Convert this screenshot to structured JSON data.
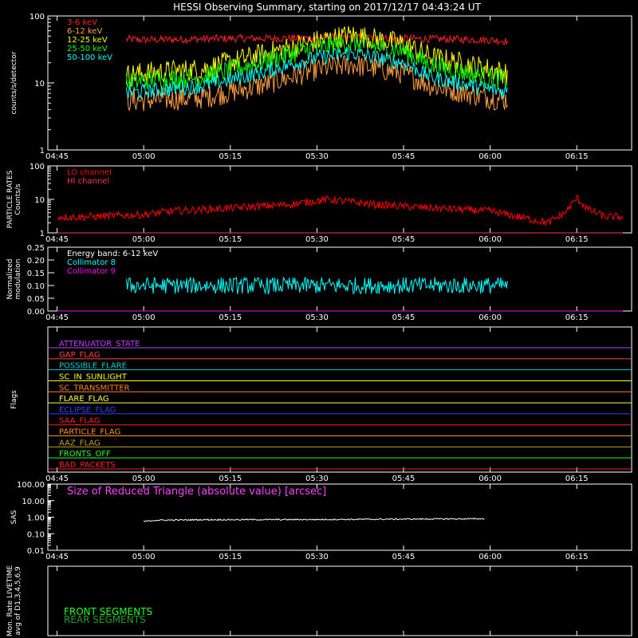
{
  "title": "HESSI Observing Summary, starting on 2017/12/17 04:43:24 UT",
  "time_ticks": [
    "04:45",
    "05:00",
    "05:15",
    "05:30",
    "05:45",
    "06:00",
    "06:15"
  ],
  "chart_data": [
    {
      "type": "line",
      "ylabel": "counts/s/detector",
      "yscale": "log",
      "ylim": [
        1,
        100
      ],
      "yticks": [
        "1",
        "10",
        "100"
      ],
      "series": [
        {
          "name": "3-6 keV",
          "color": "#ff2020",
          "window": [
            "04:57",
            "06:03"
          ],
          "t": [
            "04:57",
            "05:00",
            "05:15",
            "05:30",
            "05:36",
            "05:45",
            "06:00",
            "06:03"
          ],
          "values": [
            45,
            44,
            46,
            47,
            48,
            46,
            44,
            42
          ],
          "noise": 0.06
        },
        {
          "name": "6-12 keV",
          "color": "#ffa040",
          "window": [
            "04:57",
            "06:03"
          ],
          "t": [
            "04:57",
            "05:00",
            "05:10",
            "05:20",
            "05:30",
            "05:36",
            "05:45",
            "05:50",
            "06:00",
            "06:03"
          ],
          "values": [
            5.5,
            5.5,
            6,
            9,
            16,
            19,
            14,
            9,
            6,
            5.5
          ],
          "noise": 0.18
        },
        {
          "name": "12-25 keV",
          "color": "#ffff00",
          "window": [
            "04:57",
            "06:03"
          ],
          "t": [
            "04:57",
            "05:00",
            "05:10",
            "05:20",
            "05:30",
            "05:36",
            "05:45",
            "05:50",
            "06:00",
            "06:03"
          ],
          "values": [
            13,
            14,
            16,
            26,
            42,
            52,
            38,
            24,
            16,
            14
          ],
          "noise": 0.18
        },
        {
          "name": "25-50 keV",
          "color": "#00ff00",
          "window": [
            "04:57",
            "06:03"
          ],
          "t": [
            "04:57",
            "05:00",
            "05:10",
            "05:20",
            "05:30",
            "05:36",
            "05:45",
            "05:50",
            "06:00",
            "06:03"
          ],
          "values": [
            10,
            11,
            12,
            20,
            34,
            40,
            30,
            18,
            12,
            11
          ],
          "noise": 0.16
        },
        {
          "name": "50-100 keV",
          "color": "#00ffff",
          "window": [
            "04:57",
            "06:03"
          ],
          "t": [
            "04:57",
            "05:00",
            "05:10",
            "05:20",
            "05:30",
            "05:36",
            "05:45",
            "05:50",
            "06:00",
            "06:03"
          ],
          "values": [
            7,
            7.5,
            9,
            14,
            24,
            28,
            20,
            12,
            8,
            7.5
          ],
          "noise": 0.12
        }
      ]
    },
    {
      "type": "line",
      "ylabel": "PARTICLE RATES\nCounts/s",
      "yscale": "log",
      "ylim": [
        1,
        100
      ],
      "yticks": [
        "1",
        "10",
        "100"
      ],
      "series": [
        {
          "name": "LO channel",
          "color": "#ff0000",
          "window": [
            "04:45",
            "06:23"
          ],
          "t": [
            "04:45",
            "04:50",
            "05:00",
            "05:05",
            "05:15",
            "05:25",
            "05:32",
            "05:40",
            "05:50",
            "06:00",
            "06:05",
            "06:10",
            "06:13",
            "06:15",
            "06:17",
            "06:20",
            "06:23"
          ],
          "values": [
            3,
            3,
            3.5,
            4.5,
            5.5,
            7,
            10,
            7,
            5.5,
            4.5,
            3,
            2,
            4,
            11,
            5,
            3,
            3
          ],
          "noise": 0.12
        },
        {
          "name": "HI channel",
          "color": "#ff3060",
          "window": [
            "04:45",
            "06:23"
          ],
          "t": [
            "04:45",
            "06:23"
          ],
          "values": [
            1,
            1
          ],
          "noise": 0
        }
      ]
    },
    {
      "type": "line",
      "ylabel": "Normalized\nmodulation",
      "yscale": "linear",
      "ylim": [
        0,
        0.25
      ],
      "yticks": [
        "0.00",
        "0.05",
        "0.10",
        "0.15",
        "0.20",
        "0.25"
      ],
      "annotation": "Energy band: 6-12 keV",
      "series": [
        {
          "name": "Collimator 8",
          "color": "#00ffff",
          "window": [
            "04:57",
            "06:03"
          ],
          "t": [
            "04:57",
            "06:03"
          ],
          "values": [
            0.1,
            0.1
          ],
          "noise": 0.015
        },
        {
          "name": "Collimator 9",
          "color": "#ff00ff",
          "window": [
            "04:45",
            "06:23"
          ],
          "t": [
            "04:45",
            "06:23"
          ],
          "values": [
            0,
            0
          ],
          "noise": 0
        }
      ]
    },
    {
      "type": "line",
      "ylabel": "Flags",
      "flags": [
        {
          "name": "ATTENUATOR_STATE",
          "color": "#c040ff"
        },
        {
          "name": "GAP_FLAG",
          "color": "#ff4040"
        },
        {
          "name": "POSSIBLE_FLARE",
          "color": "#00d0d0"
        },
        {
          "name": "SC_IN_SUNLIGHT",
          "color": "#ffff00"
        },
        {
          "name": "SC_TRANSMITTER",
          "color": "#ff8020"
        },
        {
          "name": "FLARE_FLAG",
          "color": "#ffff40"
        },
        {
          "name": "ECLIPSE_FLAG",
          "color": "#3040ff"
        },
        {
          "name": "SAA_FLAG",
          "color": "#ff2020"
        },
        {
          "name": "PARTICLE_FLAG",
          "color": "#ff9020"
        },
        {
          "name": "AAZ_FLAG",
          "color": "#c0a020"
        },
        {
          "name": "FRONTS_OFF",
          "color": "#20ff20"
        },
        {
          "name": "BAD_PACKETS",
          "color": "#ff2020"
        }
      ]
    },
    {
      "type": "line",
      "ylabel": "SAS",
      "yscale": "log",
      "ylim": [
        0.01,
        100
      ],
      "yticks": [
        "0.01",
        "0.10",
        "1.00",
        "10.00",
        "100.00"
      ],
      "annotation": "Size of Reduced Triangle (absolute value) [arcsec]",
      "series": [
        {
          "name": "Size of Reduced Triangle",
          "color": "#ffffff",
          "window": [
            "05:00",
            "05:59"
          ],
          "t": [
            "05:00",
            "05:02",
            "05:10",
            "05:30",
            "05:50",
            "05:59"
          ],
          "values": [
            0.55,
            0.65,
            0.7,
            0.72,
            0.78,
            0.8
          ],
          "noise": 0.04
        }
      ]
    },
    {
      "type": "line",
      "ylabel": "Mon. Rate LIVETIME\navg of D1,3,4,5,6,9",
      "series": [
        {
          "name": "FRONT SEGMENTS",
          "color": "#20ff20",
          "values": []
        },
        {
          "name": "REAR SEGMENTS",
          "color": "#20a020",
          "values": []
        }
      ]
    }
  ]
}
